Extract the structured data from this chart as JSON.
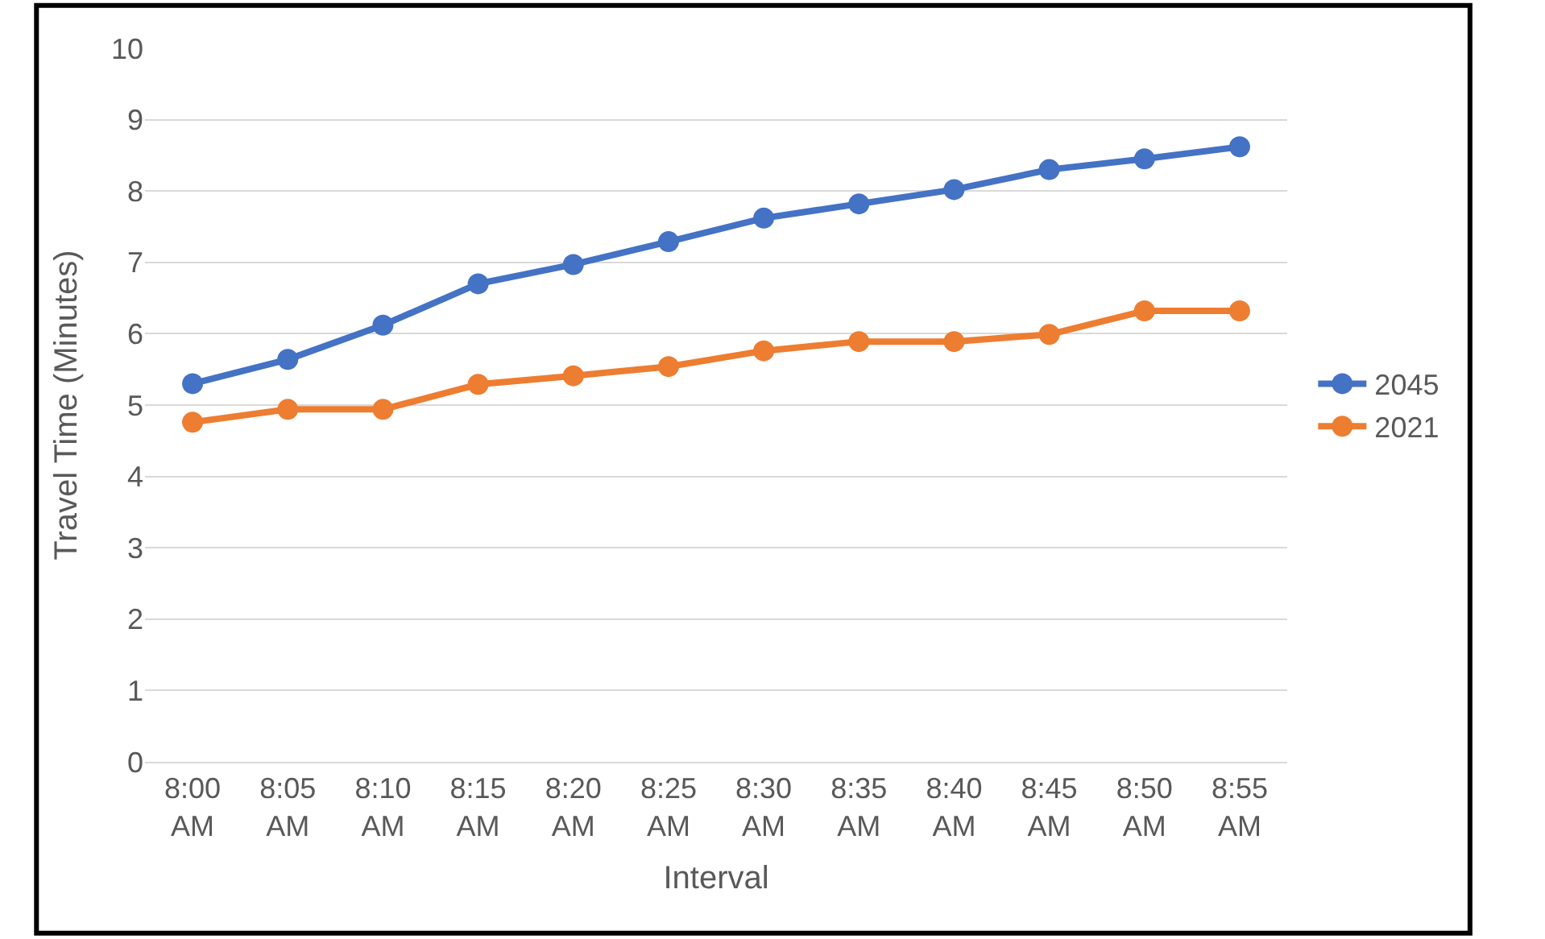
{
  "chart_data": {
    "type": "line",
    "xlabel": "Interval",
    "ylabel": "Travel Time (Minutes)",
    "categories": [
      "8:00\nAM",
      "8:05\nAM",
      "8:10\nAM",
      "8:15\nAM",
      "8:20\nAM",
      "8:25\nAM",
      "8:30\nAM",
      "8:35\nAM",
      "8:40\nAM",
      "8:45\nAM",
      "8:50\nAM",
      "8:55\nAM"
    ],
    "series": [
      {
        "name": "2045",
        "color": "#4472c4",
        "values": [
          5.3,
          5.64,
          6.12,
          6.7,
          6.97,
          7.29,
          7.62,
          7.82,
          8.02,
          8.3,
          8.45,
          8.62
        ]
      },
      {
        "name": "2021",
        "color": "#ed7d31",
        "values": [
          4.76,
          4.94,
          4.94,
          5.29,
          5.41,
          5.54,
          5.76,
          5.89,
          5.89,
          5.99,
          6.32,
          6.32
        ]
      }
    ],
    "ylim": [
      0,
      10
    ],
    "yticks": [
      0,
      1,
      2,
      3,
      4,
      5,
      6,
      7,
      8,
      9,
      10
    ],
    "grid": "y",
    "legend": "right",
    "marker": "circle",
    "line_style": "solid"
  }
}
